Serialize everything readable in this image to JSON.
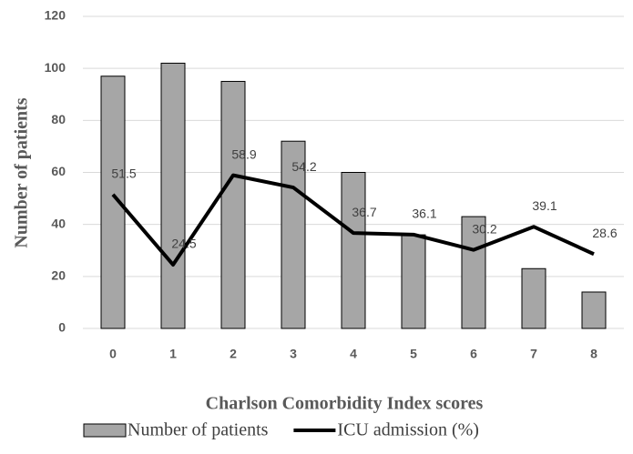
{
  "chart_data": {
    "type": "combo",
    "x_label": "Charlson Comorbidity Index scores",
    "y_label": "Number of patients",
    "categories": [
      "0",
      "1",
      "2",
      "3",
      "4",
      "5",
      "6",
      "7",
      "8"
    ],
    "series": [
      {
        "name": "Number of patients",
        "type": "bar",
        "color": "#a6a6a6",
        "values": [
          97,
          102,
          95,
          72,
          60,
          36,
          43,
          23,
          14
        ]
      },
      {
        "name": "ICU admission (%)",
        "type": "line",
        "color": "#000000",
        "values": [
          51.5,
          24.5,
          58.9,
          54.2,
          36.7,
          36.1,
          30.2,
          39.1,
          28.6
        ],
        "data_labels": true
      }
    ],
    "ylim": [
      0,
      120
    ],
    "yticks": [
      0,
      20,
      40,
      60,
      80,
      100,
      120
    ],
    "grid": true,
    "legend": "bottom"
  }
}
